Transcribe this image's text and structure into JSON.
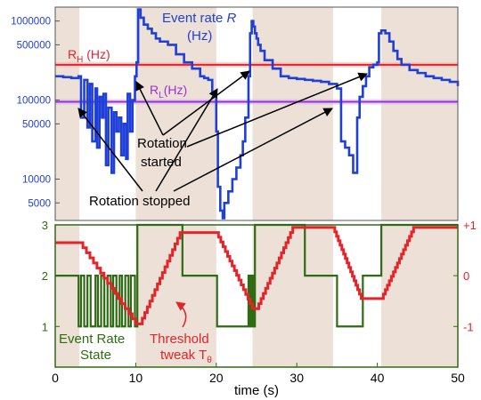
{
  "chart_data": [
    {
      "type": "line",
      "scale": "log",
      "ylim": [
        3000,
        1500000
      ],
      "xlim": [
        0,
        50
      ],
      "y_ticks": [
        {
          "value": 1000000,
          "label": "1000000"
        },
        {
          "value": 500000,
          "label": "500000"
        },
        {
          "value": 100000,
          "label": "100000"
        },
        {
          "value": 50000,
          "label": "50000"
        },
        {
          "value": 10000,
          "label": "10000"
        },
        {
          "value": 5000,
          "label": "5000"
        }
      ],
      "shaded_intervals": [
        [
          0,
          3
        ],
        [
          10,
          20
        ],
        [
          24.5,
          34.5
        ],
        [
          40.5,
          50
        ]
      ],
      "series_labels": {
        "rate_line1": "Event rate",
        "rate_symbol": "R",
        "rate_line2": "(Hz)",
        "rh_main": "R",
        "rh_sub": "H",
        "rh_unit": " (Hz)",
        "rl_main": "R",
        "rl_sub": "L",
        "rl_unit": "(Hz)"
      },
      "thresholds": {
        "R_H": 280000,
        "R_L": 95000
      },
      "colors": {
        "rate": "#1f3fd6",
        "rh": "#e3242b",
        "rl": "#9b2fd6",
        "shade": "#ece0d7"
      },
      "series": [
        {
          "name": "Event rate R",
          "x": [
            0,
            1,
            2,
            2.9,
            3.2,
            3.6,
            4,
            4.3,
            4.6,
            5,
            5.2,
            5.5,
            5.8,
            6,
            6.3,
            6.6,
            7,
            7.3,
            7.6,
            7.9,
            8.2,
            8.5,
            8.8,
            9,
            9.3,
            9.6,
            9.9,
            10.1,
            10.3,
            10.6,
            11,
            11.5,
            12,
            12.5,
            13,
            14,
            15,
            16,
            17,
            18,
            18.5,
            19,
            19.5,
            20,
            20.2,
            20.5,
            20.8,
            21,
            21.5,
            22,
            22.5,
            23,
            23.3,
            23.6,
            24,
            24.2,
            24.4,
            24.6,
            24.8,
            25,
            25.2,
            25.5,
            26,
            27,
            28,
            29,
            30,
            31,
            32,
            33,
            34,
            35,
            35.5,
            36,
            36.5,
            37,
            37.5,
            37.8,
            38.2,
            38.6,
            39,
            39.5,
            40,
            40.2,
            40.5,
            41,
            41.5,
            42,
            42.5,
            43,
            44,
            45,
            46,
            47,
            48,
            49,
            50
          ],
          "y": [
            200000,
            195000,
            190000,
            200000,
            60000,
            180000,
            45000,
            160000,
            30000,
            140000,
            25000,
            110000,
            60000,
            120000,
            15000,
            80000,
            12000,
            70000,
            40000,
            60000,
            20000,
            50000,
            18000,
            120000,
            40000,
            100000,
            200000,
            300000,
            1400000,
            1100000,
            900000,
            800000,
            700000,
            600000,
            550000,
            500000,
            380000,
            300000,
            250000,
            200000,
            190000,
            180000,
            120000,
            40000,
            8000,
            4000,
            3200,
            5000,
            7000,
            10000,
            14000,
            20000,
            30000,
            60000,
            200000,
            700000,
            1000000,
            850000,
            700000,
            600000,
            500000,
            420000,
            320000,
            250000,
            200000,
            190000,
            185000,
            180000,
            175000,
            170000,
            160000,
            140000,
            30000,
            25000,
            20000,
            12000,
            60000,
            110000,
            150000,
            200000,
            260000,
            280000,
            300000,
            700000,
            760000,
            700000,
            550000,
            420000,
            330000,
            280000,
            240000,
            220000,
            200000,
            190000,
            180000,
            170000,
            150000
          ]
        }
      ],
      "annotations": {
        "started": "Rotation\nstarted",
        "stopped": "Rotation stopped"
      }
    },
    {
      "type": "line",
      "xlim": [
        0,
        50
      ],
      "xlabel": "time (s)",
      "x_ticks": [
        0,
        10,
        20,
        30,
        40,
        50
      ],
      "left_ticks": [
        {
          "value": 3,
          "label": "3"
        },
        {
          "value": 2,
          "label": "2"
        },
        {
          "value": 1,
          "label": "1"
        }
      ],
      "right_ticks": [
        {
          "value": 1,
          "label": "+1"
        },
        {
          "value": 0,
          "label": "0"
        },
        {
          "value": -1,
          "label": "-1"
        }
      ],
      "ylim": [
        0.2,
        3
      ],
      "shaded_intervals": [
        [
          0,
          3
        ],
        [
          10,
          20
        ],
        [
          24.5,
          34.5
        ],
        [
          40.5,
          50
        ]
      ],
      "colors": {
        "state": "#2f6b12",
        "threshold": "#e3242b",
        "shade": "#ece0d7"
      },
      "series": [
        {
          "name": "Event Rate State",
          "x": [
            0,
            2.9,
            2.9,
            3.2,
            3.2,
            3.6,
            3.6,
            4.0,
            4.0,
            4.4,
            4.4,
            5.0,
            5.0,
            5.3,
            5.3,
            5.7,
            5.7,
            6.1,
            6.1,
            6.5,
            6.5,
            6.9,
            6.9,
            7.2,
            7.2,
            7.6,
            7.6,
            8.0,
            8.0,
            8.3,
            8.3,
            8.7,
            8.7,
            9.1,
            9.1,
            9.4,
            9.4,
            9.9,
            9.9,
            10.2,
            10.2,
            15.8,
            15.8,
            20.1,
            20.1,
            24.0,
            24.0,
            24.2,
            24.2,
            24.4,
            24.4,
            24.6,
            24.6,
            24.8,
            24.8,
            31.0,
            31.0,
            35.0,
            35.0,
            38.2,
            38.2,
            40.5,
            40.5,
            50
          ],
          "y": [
            2,
            2,
            1,
            1,
            2,
            2,
            1,
            1,
            2,
            2,
            1,
            1,
            2,
            2,
            1,
            1,
            2,
            2,
            1,
            1,
            2,
            2,
            1,
            1,
            2,
            2,
            1,
            1,
            2,
            2,
            1,
            1,
            2,
            2,
            1,
            1,
            2,
            2,
            1,
            1,
            3,
            3,
            2,
            2,
            1,
            1,
            2,
            2,
            1,
            1,
            2,
            2,
            1,
            1,
            3,
            3,
            2,
            2,
            1,
            1,
            2,
            2,
            3,
            3
          ]
        },
        {
          "name": "Threshold tweak T",
          "x": [
            0,
            3,
            10,
            10.5,
            15.5,
            20,
            24.5,
            25,
            29.5,
            34.5,
            38,
            40.5,
            44.5,
            50
          ],
          "y": [
            0.65,
            0.65,
            -0.95,
            -0.95,
            0.85,
            0.85,
            -0.65,
            -0.65,
            0.95,
            0.95,
            -0.45,
            -0.45,
            0.95,
            0.95
          ]
        }
      ],
      "labels": {
        "state": "Event Rate\nState",
        "threshold_l1": "Threshold",
        "threshold_l2": "tweak T",
        "threshold_sub": "θ"
      }
    }
  ]
}
